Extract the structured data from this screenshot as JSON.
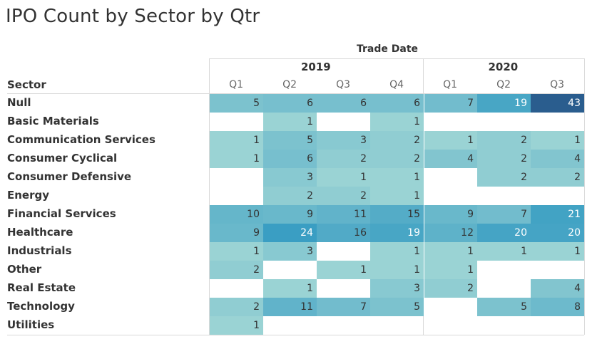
{
  "title": "IPO Count by Sector by Qtr",
  "chart_data": {
    "type": "heatmap",
    "title": "IPO Count by Sector by Qtr",
    "column_header": "Trade Date",
    "row_header": "Sector",
    "years": [
      {
        "label": "2019",
        "quarters": [
          "Q1",
          "Q2",
          "Q3",
          "Q4"
        ]
      },
      {
        "label": "2020",
        "quarters": [
          "Q1",
          "Q2",
          "Q3"
        ]
      }
    ],
    "columns": [
      "2019 Q1",
      "2019 Q2",
      "2019 Q3",
      "2019 Q4",
      "2020 Q1",
      "2020 Q2",
      "2020 Q3"
    ],
    "color_scale": {
      "low": "#b3e0d8",
      "mid": "#3a9ec3",
      "high": "#2a5d8e",
      "text_light": "#ffffff",
      "text_dark": "#333333"
    },
    "rows": [
      {
        "sector": "Null",
        "values": [
          5,
          6,
          6,
          6,
          7,
          19,
          43
        ]
      },
      {
        "sector": "Basic Materials",
        "values": [
          null,
          1,
          null,
          1,
          null,
          null,
          null
        ]
      },
      {
        "sector": "Communication Services",
        "values": [
          1,
          5,
          3,
          2,
          1,
          2,
          1
        ]
      },
      {
        "sector": "Consumer Cyclical",
        "values": [
          1,
          6,
          2,
          2,
          4,
          2,
          4
        ]
      },
      {
        "sector": "Consumer Defensive",
        "values": [
          null,
          3,
          1,
          1,
          null,
          2,
          2
        ]
      },
      {
        "sector": "Energy",
        "values": [
          null,
          2,
          2,
          1,
          null,
          null,
          null
        ]
      },
      {
        "sector": "Financial Services",
        "values": [
          10,
          9,
          11,
          15,
          9,
          7,
          21
        ]
      },
      {
        "sector": "Healthcare",
        "values": [
          9,
          24,
          16,
          19,
          12,
          20,
          20
        ]
      },
      {
        "sector": "Industrials",
        "values": [
          1,
          3,
          null,
          1,
          1,
          1,
          1
        ]
      },
      {
        "sector": "Other",
        "values": [
          2,
          null,
          1,
          1,
          1,
          null,
          null
        ]
      },
      {
        "sector": "Real Estate",
        "values": [
          null,
          1,
          null,
          3,
          2,
          null,
          4
        ]
      },
      {
        "sector": "Technology",
        "values": [
          2,
          11,
          7,
          5,
          null,
          5,
          8
        ]
      },
      {
        "sector": "Utilities",
        "values": [
          1,
          null,
          null,
          null,
          null,
          null,
          null
        ]
      }
    ]
  }
}
